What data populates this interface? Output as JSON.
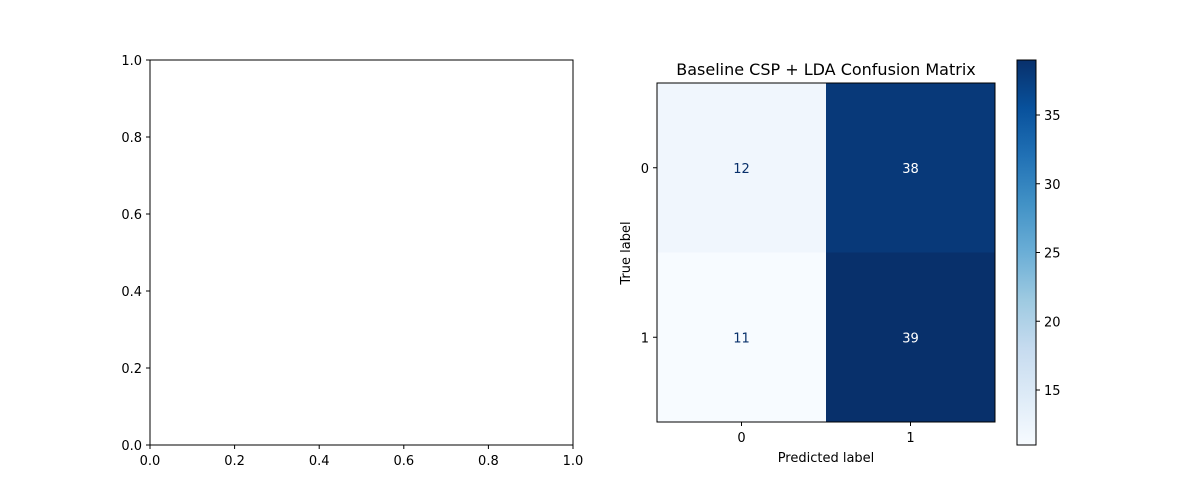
{
  "chart_data": [
    {
      "type": "line",
      "title": "",
      "xlabel": "",
      "ylabel": "",
      "xlim": [
        0.0,
        1.0
      ],
      "ylim": [
        0.0,
        1.0
      ],
      "x_ticks": [
        "0.0",
        "0.2",
        "0.4",
        "0.6",
        "0.8",
        "1.0"
      ],
      "y_ticks": [
        "0.0",
        "0.2",
        "0.4",
        "0.6",
        "0.8",
        "1.0"
      ],
      "series": [],
      "grid": false
    },
    {
      "type": "heatmap",
      "title": "Baseline CSP + LDA Confusion Matrix",
      "xlabel": "Predicted label",
      "ylabel": "True label",
      "x_categories": [
        "0",
        "1"
      ],
      "y_categories": [
        "0",
        "1"
      ],
      "values": [
        [
          12,
          38
        ],
        [
          11,
          39
        ]
      ],
      "colormap": "Blues",
      "color_range": [
        11,
        39
      ],
      "colorbar_ticks": [
        "15",
        "20",
        "25",
        "30",
        "35"
      ],
      "grid": false
    }
  ]
}
